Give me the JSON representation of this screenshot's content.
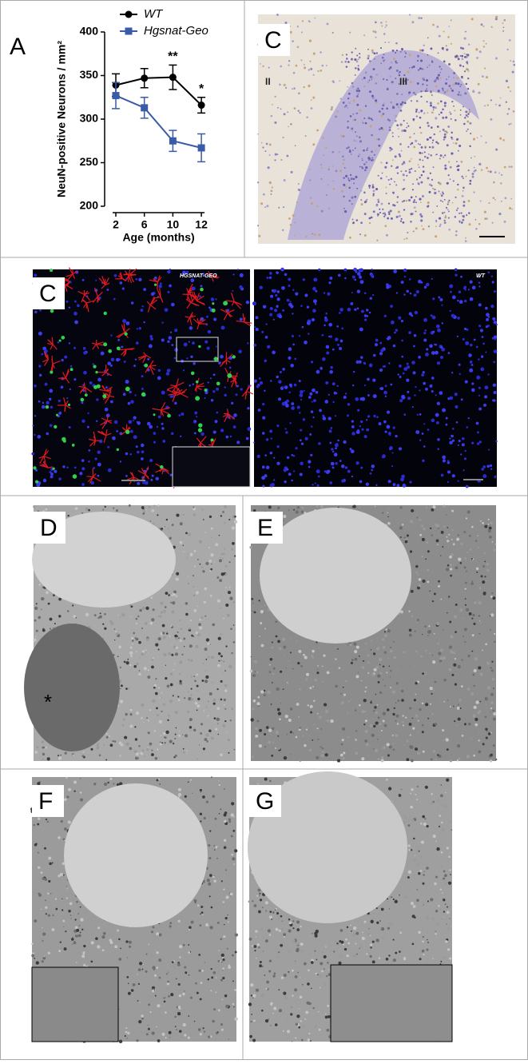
{
  "chart_data": {
    "type": "line",
    "categories": [
      "2",
      "6",
      "10",
      "12"
    ],
    "xlabel": "Age (months)",
    "ylabel": "NeuN-positive Neurons / mm²",
    "ylim": [
      200,
      400
    ],
    "yticks": [
      200,
      250,
      300,
      350,
      400
    ],
    "series": [
      {
        "name": "WT",
        "color": "#000000",
        "marker": "circle",
        "values": [
          339,
          347,
          348,
          316
        ],
        "errors": [
          13,
          11,
          14,
          9
        ]
      },
      {
        "name": "Hgsnat-Geo",
        "color": "#3a5ba8",
        "marker": "square",
        "values": [
          327,
          313,
          275,
          267
        ],
        "errors": [
          15,
          12,
          12,
          16
        ]
      }
    ],
    "annotations": [
      {
        "text": "**",
        "category": 2
      },
      {
        "text": "*",
        "category": 3
      }
    ],
    "legend": "top"
  },
  "panels": {
    "a": {
      "label": "A"
    },
    "c_top": {
      "label": "C",
      "marks": [
        "II",
        "III"
      ]
    },
    "c_fluor": {
      "label": "C",
      "left_title": "HGSNAT-GEO",
      "right_title": "WT"
    },
    "d": {
      "label": "D",
      "mark": "*"
    },
    "e": {
      "label": "E"
    },
    "f": {
      "label": "F"
    },
    "g": {
      "label": "G"
    }
  }
}
